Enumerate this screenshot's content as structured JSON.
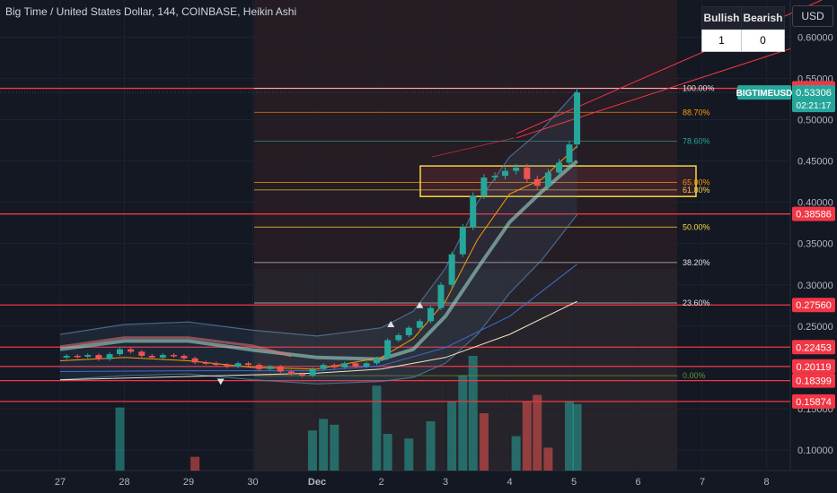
{
  "header": {
    "title": "Big Time / United States Dollar, 144, COINBASE, Heikin Ashi",
    "currency_button": "USD"
  },
  "signals_table": {
    "headers": [
      "Bullish",
      "Bearish"
    ],
    "values": [
      "1",
      "0"
    ]
  },
  "colors": {
    "background": "#141823",
    "bull": "#26a69a",
    "bear": "#ef5350",
    "level_line": "#f23645",
    "fib_box": "#f5d742"
  },
  "chart_data": {
    "type": "candlestick",
    "series_style": "Heikin Ashi",
    "symbol_tag": "BIGTIMEUSD",
    "last_price": "0.53306",
    "countdown": "02:21:17",
    "x_ticks": [
      "27",
      "28",
      "29",
      "30",
      "Dec",
      "2",
      "3",
      "4",
      "5",
      "6",
      "7",
      "8"
    ],
    "y_ticks": [
      "0.60000",
      "0.55000",
      "0.50000",
      "0.45000",
      "0.40000",
      "0.35000",
      "0.30000",
      "0.25000",
      "0.20000",
      "0.15000",
      "0.10000"
    ],
    "ylim": [
      0.075,
      0.645
    ],
    "price_levels": [
      "0.53800",
      "0.38586",
      "0.27560",
      "0.22453",
      "0.20119",
      "0.18399",
      "0.15874"
    ],
    "fib_levels": [
      {
        "label": "100.00%",
        "value": 0.538,
        "color": "#e0e0e0"
      },
      {
        "label": "88.70%",
        "value": 0.509,
        "color": "#ff9800"
      },
      {
        "label": "78.60%",
        "value": 0.474,
        "color": "#26a69a"
      },
      {
        "label": "65.00%",
        "value": 0.424,
        "color": "#ff9800"
      },
      {
        "label": "61.80%",
        "value": 0.415,
        "color": "#f5d742"
      },
      {
        "label": "50.00%",
        "value": 0.37,
        "color": "#f5d742"
      },
      {
        "label": "38.20%",
        "value": 0.327,
        "color": "#e0e0e0"
      },
      {
        "label": "23.60%",
        "value": 0.278,
        "color": "#e0e0e0"
      },
      {
        "label": "0.00%",
        "value": 0.19,
        "color": "#6b8f3a"
      }
    ],
    "candles": [
      {
        "x": 0.1,
        "o": 0.212,
        "c": 0.214
      },
      {
        "x": 0.27,
        "o": 0.214,
        "c": 0.213
      },
      {
        "x": 0.43,
        "o": 0.213,
        "c": 0.215
      },
      {
        "x": 0.6,
        "o": 0.215,
        "c": 0.21
      },
      {
        "x": 0.77,
        "o": 0.21,
        "c": 0.216
      },
      {
        "x": 0.93,
        "o": 0.216,
        "c": 0.222
      },
      {
        "x": 1.1,
        "o": 0.222,
        "c": 0.219
      },
      {
        "x": 1.27,
        "o": 0.219,
        "c": 0.214
      },
      {
        "x": 1.43,
        "o": 0.214,
        "c": 0.212
      },
      {
        "x": 1.6,
        "o": 0.212,
        "c": 0.215
      },
      {
        "x": 1.77,
        "o": 0.215,
        "c": 0.214
      },
      {
        "x": 1.93,
        "o": 0.214,
        "c": 0.211
      },
      {
        "x": 2.1,
        "o": 0.211,
        "c": 0.206
      },
      {
        "x": 2.27,
        "o": 0.206,
        "c": 0.205
      },
      {
        "x": 2.43,
        "o": 0.205,
        "c": 0.203
      },
      {
        "x": 2.6,
        "o": 0.203,
        "c": 0.201
      },
      {
        "x": 2.77,
        "o": 0.201,
        "c": 0.205
      },
      {
        "x": 2.93,
        "o": 0.205,
        "c": 0.203
      },
      {
        "x": 3.1,
        "o": 0.203,
        "c": 0.198
      },
      {
        "x": 3.27,
        "o": 0.198,
        "c": 0.201
      },
      {
        "x": 3.43,
        "o": 0.201,
        "c": 0.195
      },
      {
        "x": 3.6,
        "o": 0.195,
        "c": 0.192
      },
      {
        "x": 3.77,
        "o": 0.192,
        "c": 0.19
      },
      {
        "x": 3.93,
        "o": 0.19,
        "c": 0.198
      },
      {
        "x": 4.1,
        "o": 0.198,
        "c": 0.203
      },
      {
        "x": 4.27,
        "o": 0.203,
        "c": 0.2
      },
      {
        "x": 4.43,
        "o": 0.2,
        "c": 0.205
      },
      {
        "x": 4.6,
        "o": 0.205,
        "c": 0.201
      },
      {
        "x": 4.77,
        "o": 0.201,
        "c": 0.205
      },
      {
        "x": 4.93,
        "o": 0.205,
        "c": 0.211
      },
      {
        "x": 5.1,
        "o": 0.211,
        "c": 0.233
      },
      {
        "x": 5.27,
        "o": 0.233,
        "c": 0.239
      },
      {
        "x": 5.43,
        "o": 0.239,
        "c": 0.248
      },
      {
        "x": 5.6,
        "o": 0.248,
        "c": 0.256
      },
      {
        "x": 5.77,
        "o": 0.256,
        "c": 0.272
      },
      {
        "x": 5.93,
        "o": 0.272,
        "c": 0.3
      },
      {
        "x": 6.1,
        "o": 0.3,
        "c": 0.337
      },
      {
        "x": 6.27,
        "o": 0.337,
        "c": 0.37
      },
      {
        "x": 6.43,
        "o": 0.37,
        "c": 0.408
      },
      {
        "x": 6.6,
        "o": 0.408,
        "c": 0.43
      },
      {
        "x": 6.77,
        "o": 0.43,
        "c": 0.432
      },
      {
        "x": 6.93,
        "o": 0.432,
        "c": 0.438
      },
      {
        "x": 7.1,
        "o": 0.438,
        "c": 0.442
      },
      {
        "x": 7.27,
        "o": 0.442,
        "c": 0.428
      },
      {
        "x": 7.43,
        "o": 0.428,
        "c": 0.42
      },
      {
        "x": 7.6,
        "o": 0.42,
        "c": 0.436
      },
      {
        "x": 7.77,
        "o": 0.436,
        "c": 0.448
      },
      {
        "x": 7.93,
        "o": 0.448,
        "c": 0.47
      },
      {
        "x": 8.05,
        "o": 0.47,
        "c": 0.533
      }
    ],
    "volume": [
      {
        "x": 0.93,
        "v": 0.55,
        "bull": true
      },
      {
        "x": 2.1,
        "v": 0.12,
        "bull": false
      },
      {
        "x": 3.93,
        "v": 0.35,
        "bull": true
      },
      {
        "x": 4.1,
        "v": 0.45,
        "bull": true
      },
      {
        "x": 4.27,
        "v": 0.4,
        "bull": true
      },
      {
        "x": 4.93,
        "v": 0.74,
        "bull": true
      },
      {
        "x": 5.1,
        "v": 0.32,
        "bull": true
      },
      {
        "x": 5.43,
        "v": 0.28,
        "bull": true
      },
      {
        "x": 5.77,
        "v": 0.43,
        "bull": true
      },
      {
        "x": 6.1,
        "v": 0.6,
        "bull": true
      },
      {
        "x": 6.27,
        "v": 0.83,
        "bull": true
      },
      {
        "x": 6.43,
        "v": 1.0,
        "bull": true
      },
      {
        "x": 6.6,
        "v": 0.5,
        "bull": false
      },
      {
        "x": 7.1,
        "v": 0.3,
        "bull": true
      },
      {
        "x": 7.27,
        "v": 0.6,
        "bull": false
      },
      {
        "x": 7.43,
        "v": 0.66,
        "bull": false
      },
      {
        "x": 7.6,
        "v": 0.2,
        "bull": false
      },
      {
        "x": 7.93,
        "v": 0.6,
        "bull": true
      },
      {
        "x": 8.05,
        "v": 0.58,
        "bull": true
      }
    ],
    "fast_ma": [
      [
        0.0,
        0.208
      ],
      [
        1.0,
        0.212
      ],
      [
        2.0,
        0.208
      ],
      [
        3.0,
        0.2
      ],
      [
        4.0,
        0.198
      ],
      [
        5.0,
        0.212
      ],
      [
        5.5,
        0.235
      ],
      [
        6.0,
        0.28
      ],
      [
        6.5,
        0.355
      ],
      [
        7.0,
        0.41
      ],
      [
        7.5,
        0.428
      ],
      [
        8.05,
        0.468
      ]
    ],
    "slow_ma": [
      [
        0.0,
        0.222
      ],
      [
        1.0,
        0.232
      ],
      [
        2.0,
        0.232
      ],
      [
        3.0,
        0.221
      ],
      [
        4.0,
        0.212
      ],
      [
        5.0,
        0.21
      ],
      [
        5.5,
        0.222
      ],
      [
        6.0,
        0.262
      ],
      [
        6.5,
        0.32
      ],
      [
        7.0,
        0.376
      ],
      [
        7.5,
        0.413
      ],
      [
        8.05,
        0.45
      ]
    ],
    "ma_100": [
      [
        0.0,
        0.195
      ],
      [
        2.0,
        0.196
      ],
      [
        4.0,
        0.196
      ],
      [
        5.0,
        0.202
      ],
      [
        6.0,
        0.224
      ],
      [
        7.0,
        0.262
      ],
      [
        8.05,
        0.325
      ]
    ],
    "ma_200": [
      [
        0.0,
        0.185
      ],
      [
        2.0,
        0.189
      ],
      [
        4.0,
        0.193
      ],
      [
        5.0,
        0.198
      ],
      [
        6.0,
        0.212
      ],
      [
        7.0,
        0.24
      ],
      [
        8.05,
        0.28
      ]
    ],
    "band_upper": [
      [
        0.0,
        0.24
      ],
      [
        1.0,
        0.252
      ],
      [
        2.0,
        0.255
      ],
      [
        3.0,
        0.245
      ],
      [
        4.0,
        0.238
      ],
      [
        5.0,
        0.248
      ],
      [
        5.5,
        0.268
      ],
      [
        6.0,
        0.32
      ],
      [
        6.5,
        0.4
      ],
      [
        7.0,
        0.455
      ],
      [
        7.5,
        0.488
      ],
      [
        8.05,
        0.535
      ]
    ],
    "band_lower": [
      [
        0.0,
        0.185
      ],
      [
        1.0,
        0.19
      ],
      [
        2.0,
        0.192
      ],
      [
        3.0,
        0.185
      ],
      [
        4.0,
        0.18
      ],
      [
        5.0,
        0.183
      ],
      [
        5.5,
        0.188
      ],
      [
        6.0,
        0.205
      ],
      [
        6.5,
        0.24
      ],
      [
        7.0,
        0.29
      ],
      [
        7.5,
        0.33
      ],
      [
        8.05,
        0.385
      ]
    ],
    "markers": [
      {
        "x": 2.5,
        "y": 0.183,
        "shape": "down",
        "color": "#e0e0e0"
      },
      {
        "x": 5.15,
        "y": 0.252,
        "shape": "up",
        "color": "#e0e0e0"
      },
      {
        "x": 5.6,
        "y": 0.275,
        "shape": "up",
        "color": "#e0e0e0"
      }
    ]
  }
}
